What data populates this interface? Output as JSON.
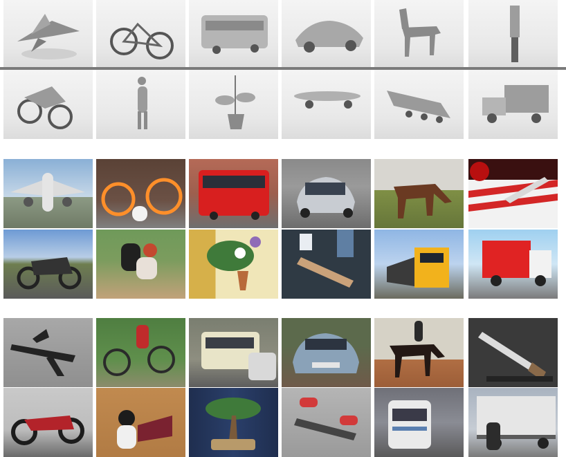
{
  "categories": [
    "aeroplane",
    "bicycle",
    "bus",
    "car",
    "horse",
    "knife",
    "motorcycle",
    "person",
    "plant",
    "skateboard",
    "train",
    "truck"
  ],
  "groups": [
    {
      "id": "synthetic",
      "rows": 2
    },
    {
      "id": "real-images",
      "rows": 2
    },
    {
      "id": "video-frames",
      "rows": 2
    }
  ],
  "colors": {
    "synthetic_separator": "#7a7a7a",
    "real_border": "#6f6f6f",
    "video_border": "#8a8a8a"
  }
}
